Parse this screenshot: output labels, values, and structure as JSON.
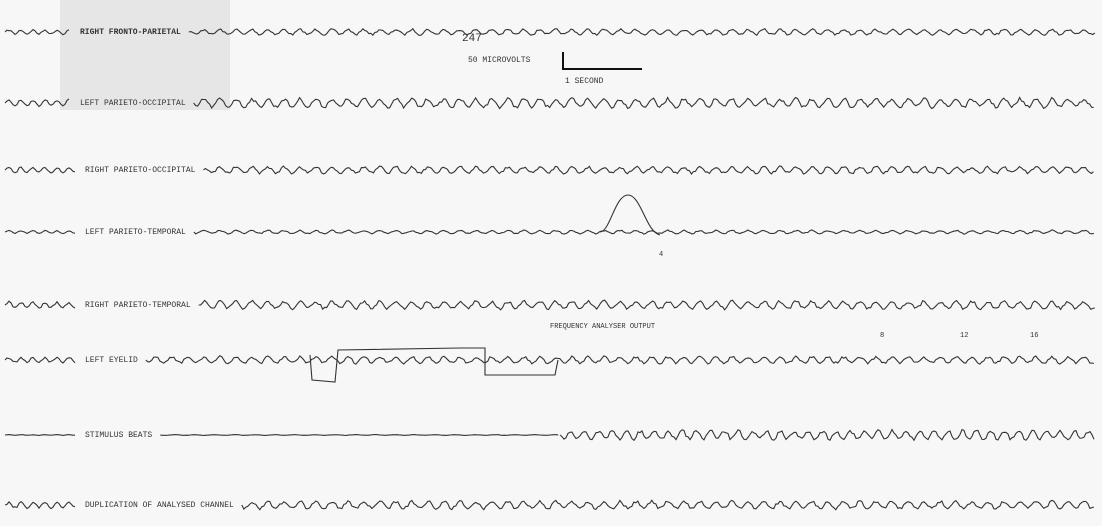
{
  "figure_number": "247",
  "scale": {
    "amplitude": "50 MICROVOLTS",
    "time": "1 SECOND"
  },
  "channels": [
    {
      "label": "RIGHT FRONTO-PARIETAL"
    },
    {
      "label": "LEFT PARIETO-OCCIPITAL"
    },
    {
      "label": "RIGHT PARIETO-OCCIPITAL"
    },
    {
      "label": "LEFT PARIETO-TEMPORAL"
    },
    {
      "label": "RIGHT PARIETO-TEMPORAL"
    },
    {
      "label": "LEFT EYELID"
    },
    {
      "label": "STIMULUS BEATS"
    },
    {
      "label": "DUPLICATION OF ANALYSED CHANNEL"
    }
  ],
  "annotations": {
    "analyser": "FREQUENCY ANALYSER OUTPUT",
    "frequencies": [
      "8",
      "12",
      "16"
    ],
    "marker": "4"
  }
}
